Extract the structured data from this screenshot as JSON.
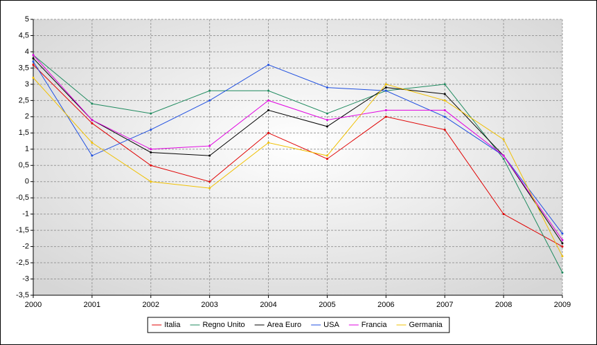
{
  "chart_data": {
    "type": "line",
    "x": [
      2000,
      2001,
      2002,
      2003,
      2004,
      2005,
      2006,
      2007,
      2008,
      2009
    ],
    "xlim": [
      2000,
      2009
    ],
    "xticks": [
      2000,
      2001,
      2002,
      2003,
      2004,
      2005,
      2006,
      2007,
      2008,
      2009
    ],
    "ylim": [
      -3.5,
      5
    ],
    "yticks": [
      {
        "value": -3.5,
        "label": "-3,5"
      },
      -3,
      {
        "value": -2.5,
        "label": "-2,5"
      },
      -2,
      {
        "value": -1.5,
        "label": "-1,5"
      },
      -1,
      {
        "value": -0.5,
        "label": "-0,5"
      },
      0,
      {
        "value": 0.5,
        "label": "0,5"
      },
      1,
      {
        "value": 1.5,
        "label": "1,5"
      },
      2,
      {
        "value": 2.5,
        "label": "2,5"
      },
      3,
      {
        "value": 3.5,
        "label": "3,5"
      },
      4,
      {
        "value": 4.5,
        "label": "4,5"
      },
      5
    ],
    "grid": true,
    "legend": "bottom",
    "series": [
      {
        "name": "Italia",
        "color": "#e00000",
        "values": [
          3.6,
          1.8,
          0.5,
          0.0,
          1.5,
          0.7,
          2.0,
          1.6,
          -1.0,
          -2.0
        ]
      },
      {
        "name": "Regno Unito",
        "color": "#1e8a5e",
        "values": [
          3.9,
          2.4,
          2.1,
          2.8,
          2.8,
          2.1,
          2.8,
          3.0,
          0.7,
          -2.8
        ]
      },
      {
        "name": "Area Euro",
        "color": "#000000",
        "values": [
          3.8,
          1.9,
          0.9,
          0.8,
          2.2,
          1.7,
          2.9,
          2.7,
          0.8,
          -1.9
        ]
      },
      {
        "name": "USA",
        "color": "#1f4fe0",
        "values": [
          3.7,
          0.8,
          1.6,
          2.5,
          3.6,
          2.9,
          2.8,
          2.0,
          0.8,
          -1.6
        ]
      },
      {
        "name": "Francia",
        "color": "#e000e0",
        "values": [
          3.9,
          1.9,
          1.0,
          1.1,
          2.5,
          1.9,
          2.2,
          2.2,
          0.8,
          -1.8
        ]
      },
      {
        "name": "Germania",
        "color": "#f0c000",
        "values": [
          3.2,
          1.2,
          0.0,
          -0.2,
          1.2,
          0.8,
          3.0,
          2.5,
          1.3,
          -2.3
        ]
      }
    ]
  }
}
